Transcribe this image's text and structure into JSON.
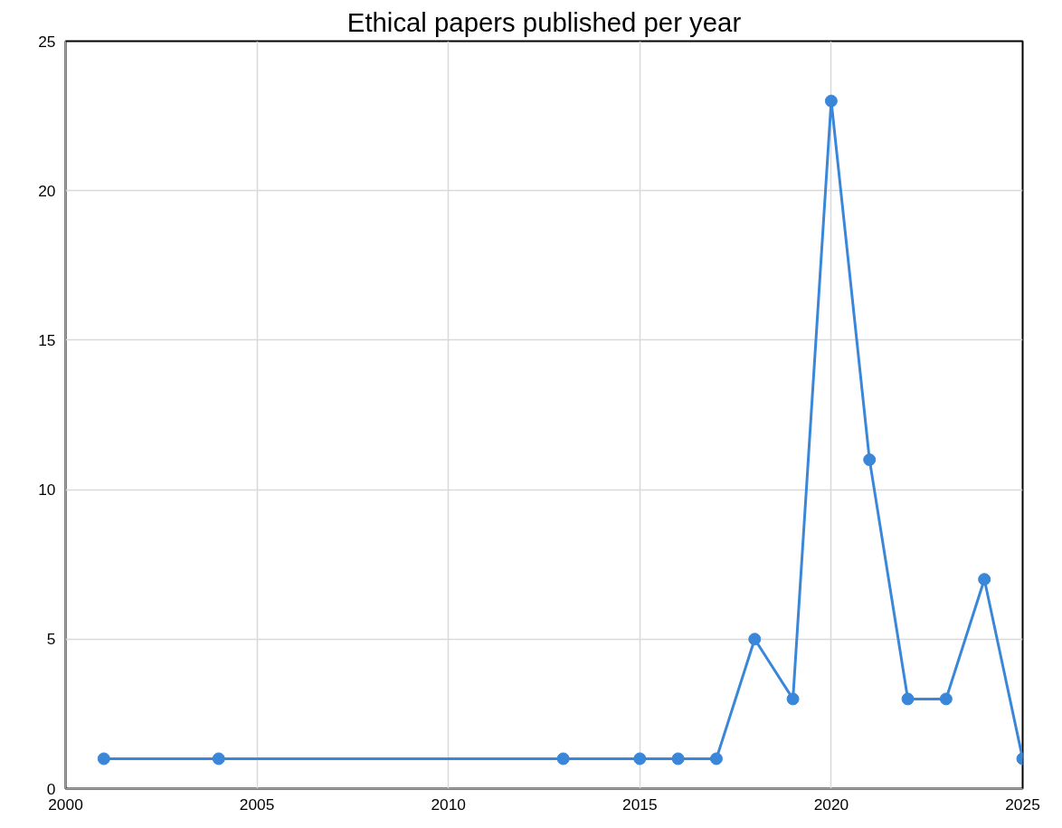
{
  "chart_data": {
    "type": "line",
    "title": "Ethical papers published per year",
    "x": [
      2001,
      2004,
      2013,
      2015,
      2016,
      2017,
      2018,
      2019,
      2020,
      2021,
      2022,
      2023,
      2024,
      2025
    ],
    "series": [
      {
        "color": "#3a87d9",
        "values": [
          1,
          1,
          1,
          1,
          1,
          1,
          5,
          3,
          23,
          11,
          3,
          3,
          7,
          1
        ]
      }
    ],
    "xlim": [
      2000,
      2025
    ],
    "xticks": [
      2000,
      2005,
      2010,
      2015,
      2020,
      2025
    ],
    "ylim": [
      0,
      25
    ],
    "yticks": [
      0,
      5,
      10,
      15,
      20,
      25
    ],
    "grid": true,
    "marker": "circle",
    "line_style": "solid"
  }
}
